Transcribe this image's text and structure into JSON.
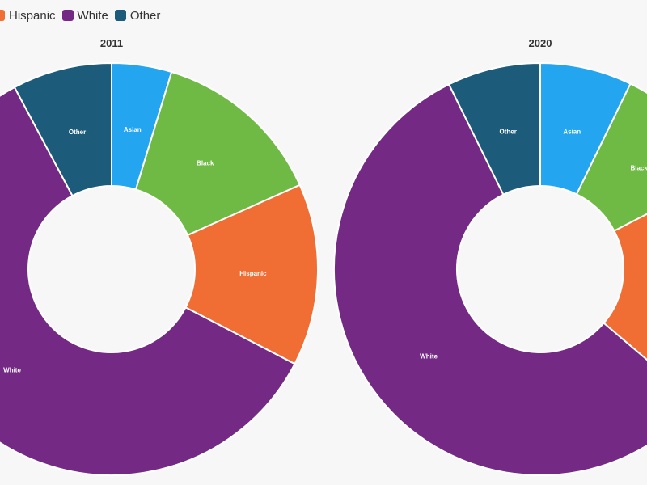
{
  "chart_data": [
    {
      "type": "donut",
      "title": "2011",
      "categories": [
        "Asian",
        "Black",
        "Hispanic",
        "White",
        "Other"
      ],
      "values": [
        4.7,
        13.6,
        14.3,
        59.6,
        7.8
      ],
      "colors": [
        "#23a5ef",
        "#6fba45",
        "#f06d33",
        "#742a84",
        "#1c5b79"
      ],
      "legend": "top-left"
    },
    {
      "type": "donut",
      "title": "2020",
      "categories": [
        "Asian",
        "Black",
        "Hispanic",
        "White",
        "Other"
      ],
      "values": [
        7.2,
        10.2,
        18.8,
        56.5,
        7.3
      ],
      "colors": [
        "#23a5ef",
        "#6fba45",
        "#f06d33",
        "#742a84",
        "#1c5b79"
      ],
      "legend": "top-left"
    }
  ],
  "legend": {
    "items": [
      {
        "label": "Hispanic",
        "color": "#f06d33"
      },
      {
        "label": "White",
        "color": "#742a84"
      },
      {
        "label": "Other",
        "color": "#1c5b79"
      }
    ]
  }
}
